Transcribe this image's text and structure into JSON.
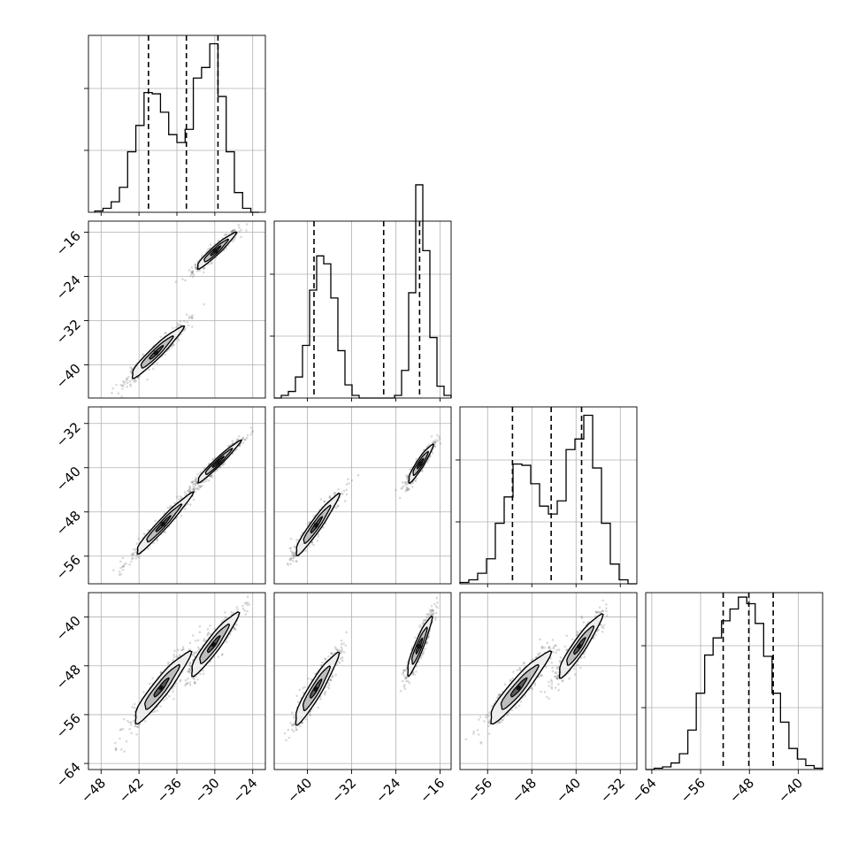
{
  "chart_data": {
    "type": "corner",
    "grid": true,
    "parameters": [
      {
        "range": [
          -50,
          -22
        ],
        "ticks": [
          -48,
          -42,
          -36,
          -30,
          -24
        ],
        "quantiles": [
          -40.5,
          -34.5,
          -29.5
        ],
        "hist_peak": 125
      },
      {
        "range": [
          -46,
          -14
        ],
        "ticks": [
          -40,
          -32,
          -24,
          -16
        ],
        "y_ticks": [
          -16,
          -24,
          -32,
          -40
        ],
        "quantiles": [
          -38.8,
          -26.2,
          -19.7
        ],
        "hist_peak": 125
      },
      {
        "range": [
          -61,
          -29
        ],
        "ticks": [
          -56,
          -48,
          -40,
          -32
        ],
        "y_ticks": [
          -32,
          -40,
          -48,
          -56
        ],
        "quantiles": [
          -51.5,
          -44.5,
          -39.0
        ],
        "hist_peak": 125
      },
      {
        "range": [
          -65,
          -36
        ],
        "ticks": [
          -64,
          -56,
          -48,
          -40
        ],
        "y_ticks": [
          -40,
          -48,
          -56,
          -64
        ],
        "quantiles": [
          -52.3,
          -48.1,
          -44.1
        ],
        "hist_peak": 125
      }
    ],
    "histograms": [
      {
        "param": 0,
        "edges_range": [
          -49,
          -23
        ],
        "counts": [
          1,
          3,
          8,
          19,
          46,
          66,
          91,
          90,
          76,
          59,
          53,
          63,
          102,
          110,
          128,
          88,
          46,
          15,
          3,
          0
        ]
      },
      {
        "param": 1,
        "edges_range": [
          -46,
          -14
        ],
        "counts": [
          0,
          2,
          5,
          16,
          40,
          82,
          108,
          102,
          76,
          36,
          10,
          2,
          0,
          0,
          0,
          0,
          0,
          2,
          21,
          80,
          162,
          112,
          46,
          9,
          2
        ]
      },
      {
        "param": 2,
        "edges_range": [
          -61,
          -29
        ],
        "counts": [
          1,
          3,
          8,
          19,
          46,
          66,
          91,
          90,
          76,
          59,
          53,
          63,
          102,
          110,
          128,
          88,
          46,
          15,
          3,
          0
        ]
      },
      {
        "param": 3,
        "edges_range": [
          -65,
          -36
        ],
        "counts": [
          0,
          1,
          2,
          5,
          12,
          30,
          58,
          87,
          100,
          113,
          122,
          131,
          126,
          111,
          86,
          58,
          36,
          16,
          8,
          3,
          1
        ]
      }
    ],
    "pairs": [
      {
        "x": 0,
        "y": 1,
        "clusters": [
          {
            "cx": -29.9,
            "cy": -19.4,
            "sx": 1.8,
            "sy": 1.9,
            "rho": 0.95
          },
          {
            "cx": -39.3,
            "cy": -37.8,
            "sx": 2.4,
            "sy": 2.7,
            "rho": 0.95
          }
        ]
      },
      {
        "x": 0,
        "y": 2,
        "clusters": [
          {
            "cx": -29.5,
            "cy": -39.0,
            "sx": 2.0,
            "sy": 2.2,
            "rho": 0.97
          },
          {
            "cx": -38.2,
            "cy": -50.2,
            "sx": 2.6,
            "sy": 3.2,
            "rho": 0.97
          }
        ]
      },
      {
        "x": 1,
        "y": 2,
        "clusters": [
          {
            "cx": -19.6,
            "cy": -39.3,
            "sx": 1.3,
            "sy": 2.0,
            "rho": 0.93
          },
          {
            "cx": -38.4,
            "cy": -50.4,
            "sx": 2.3,
            "sy": 3.2,
            "rho": 0.95
          }
        ]
      },
      {
        "x": 0,
        "y": 3,
        "clusters": [
          {
            "cx": -30.2,
            "cy": -44.5,
            "sx": 2.2,
            "sy": 3.0,
            "rho": 0.93
          },
          {
            "cx": -38.5,
            "cy": -51.6,
            "sx": 2.6,
            "sy": 3.4,
            "rho": 0.93
          }
        ]
      },
      {
        "x": 1,
        "y": 3,
        "clusters": [
          {
            "cx": -19.8,
            "cy": -44.8,
            "sx": 1.3,
            "sy": 2.8,
            "rho": 0.92
          },
          {
            "cx": -38.5,
            "cy": -51.8,
            "sx": 2.3,
            "sy": 3.4,
            "rho": 0.93
          }
        ]
      },
      {
        "x": 2,
        "y": 3,
        "clusters": [
          {
            "cx": -39.4,
            "cy": -44.8,
            "sx": 2.3,
            "sy": 3.0,
            "rho": 0.93
          },
          {
            "cx": -50.4,
            "cy": -51.6,
            "sx": 3.2,
            "sy": 3.4,
            "rho": 0.93
          }
        ]
      }
    ]
  }
}
